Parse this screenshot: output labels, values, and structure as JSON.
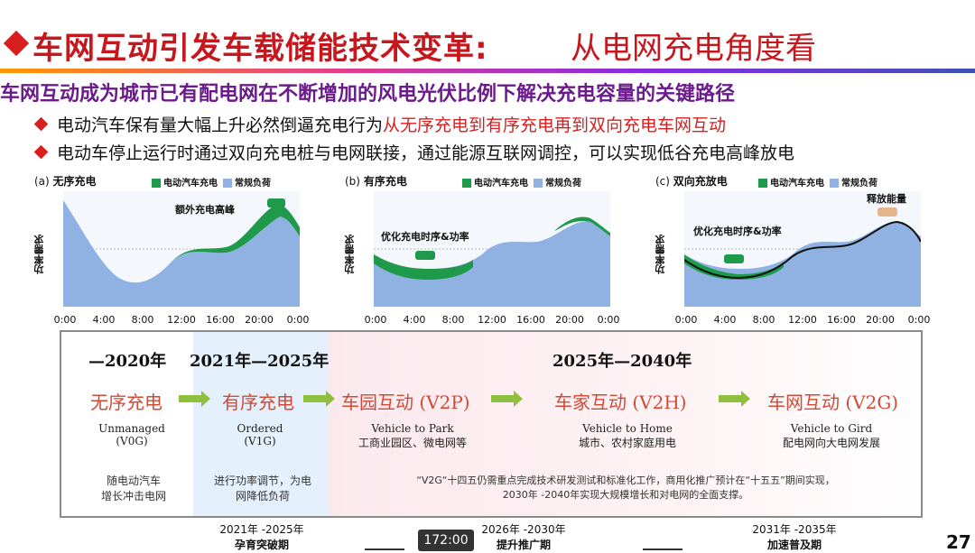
{
  "slide": {
    "title_main": "车网互动引发车载储能技术变革:",
    "title_sub": "从电网充电角度看",
    "subtitle": "车网互动成为城市已有配电网在不断增加的风电光伏比例下解决充电容量的关键路径",
    "bullets": [
      {
        "pre": "电动汽车保有量大幅上升必然倒逼充电行为",
        "highlight": "从无序充电到有序充电再到双向充电车网互动"
      },
      {
        "pre": "电动车停止运行时通过双向充电桩与电网联接，通过能源互联网调控，可以实现低谷充电高峰放电",
        "highlight": ""
      }
    ],
    "page_number": "27",
    "timer": "172:00"
  },
  "charts": [
    {
      "tag": "(a)",
      "name": "无序充电",
      "legend_ev": "电动汽车充电",
      "legend_base": "常规负荷",
      "ylabel": "功率需求",
      "annotation": "额外充电高峰",
      "xticks": [
        "0:00",
        "4:00",
        "8:00",
        "12:00",
        "16:00",
        "20:00",
        "0:00"
      ]
    },
    {
      "tag": "(b)",
      "name": "有序充电",
      "legend_ev": "电动汽车充电",
      "legend_base": "常规负荷",
      "ylabel": "功率需求",
      "annotation": "优化充电时序&功率",
      "xticks": [
        "0:00",
        "4:00",
        "8:00",
        "12:00",
        "16:00",
        "20:00",
        "0:00"
      ]
    },
    {
      "tag": "(c)",
      "name": "双向充放电",
      "legend_ev": "电动汽车充电",
      "legend_base": "常规负荷",
      "ylabel": "功率需求",
      "annotation": "优化充电时序&功率",
      "annotation2": "释放能量",
      "xticks": [
        "0:00",
        "4:00",
        "8:00",
        "12:00",
        "16:00",
        "20:00",
        "0:00"
      ]
    }
  ],
  "timeline": {
    "years": [
      "—2020年",
      "2021年—2025年",
      "2025年—2040年"
    ],
    "stages": [
      {
        "cn": "无序充电",
        "en1": "Unmanaged",
        "en2": "(V0G)"
      },
      {
        "cn": "有序充电",
        "en1": "Ordered",
        "en2": "(V1G)"
      },
      {
        "cn": "车园互动 (V2P)",
        "en1": "Vehicle to Park",
        "en2": "工商业园区、微电网等"
      },
      {
        "cn": "车家互动 (V2H)",
        "en1": "Vehicle to Home",
        "en2": "城市、农村家庭用电"
      },
      {
        "cn": "车网互动 (V2G)",
        "en1": "Vehicle to Gird",
        "en2": "配电网向大电网发展"
      }
    ],
    "notes": [
      "随电动汽车\n增长冲击电网",
      "进行功率调节，为电\n网降低负荷",
      "“V2G“十四五仍需重点完成技术研发测试和标准化工作，商用化推广预计在“十五五”期间实现，\n2030年 -2040年实现大规模增长和对电网的全面支撑。"
    ]
  },
  "phases": [
    {
      "years": "2021年 -2025年",
      "label": "孕育突破期"
    },
    {
      "years": "2026年 -2030年",
      "label": "提升推广期"
    },
    {
      "years": "2031年 -2035年",
      "label": "加速普及期"
    }
  ],
  "colors": {
    "title_red": "#c8161d",
    "ev_green": "#1e9a4a",
    "base_blue": "#8fb2e3",
    "stage_red": "#d04a35",
    "subtitle_purple": "#6b1b8c"
  }
}
